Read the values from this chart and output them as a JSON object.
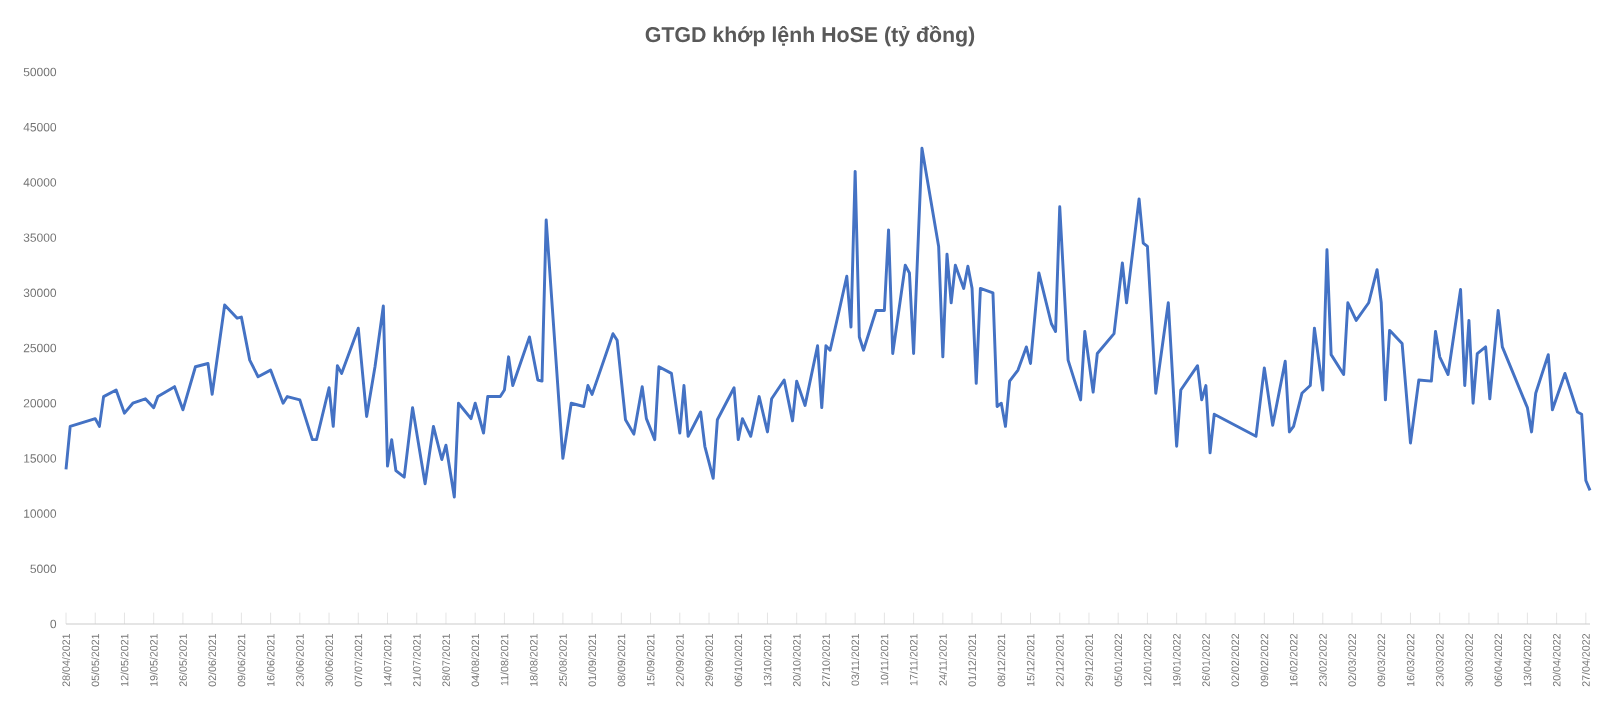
{
  "chart_data": {
    "type": "line",
    "title": "GTGD khớp lệnh HoSE (tỷ đồng)",
    "color": "#4472c4",
    "x": [
      "2021-04-28",
      "2021-04-29",
      "2021-05-05",
      "2021-05-06",
      "2021-05-07",
      "2021-05-10",
      "2021-05-12",
      "2021-05-14",
      "2021-05-17",
      "2021-05-19",
      "2021-05-20",
      "2021-05-24",
      "2021-05-26",
      "2021-05-29",
      "2021-06-01",
      "2021-06-02",
      "2021-06-05",
      "2021-06-08",
      "2021-06-09",
      "2021-06-11",
      "2021-06-13",
      "2021-06-16",
      "2021-06-19",
      "2021-06-20",
      "2021-06-23",
      "2021-06-24",
      "2021-06-26",
      "2021-06-27",
      "2021-06-30",
      "2021-07-01",
      "2021-07-02",
      "2021-07-03",
      "2021-07-07",
      "2021-07-09",
      "2021-07-11",
      "2021-07-13",
      "2021-07-14",
      "2021-07-15",
      "2021-07-16",
      "2021-07-18",
      "2021-07-20",
      "2021-07-23",
      "2021-07-25",
      "2021-07-27",
      "2021-07-28",
      "2021-07-30",
      "2021-07-31",
      "2021-08-03",
      "2021-08-04",
      "2021-08-06",
      "2021-08-07",
      "2021-08-10",
      "2021-08-11",
      "2021-08-12",
      "2021-08-13",
      "2021-08-17",
      "2021-08-19",
      "2021-08-20",
      "2021-08-21",
      "2021-08-25",
      "2021-08-27",
      "2021-08-30",
      "2021-08-31",
      "2021-09-01",
      "2021-09-06",
      "2021-09-07",
      "2021-09-09",
      "2021-09-11",
      "2021-09-13",
      "2021-09-14",
      "2021-09-16",
      "2021-09-17",
      "2021-09-20",
      "2021-09-22",
      "2021-09-23",
      "2021-09-24",
      "2021-09-27",
      "2021-09-28",
      "2021-09-30",
      "2021-10-01",
      "2021-10-05",
      "2021-10-06",
      "2021-10-07",
      "2021-10-09",
      "2021-10-11",
      "2021-10-13",
      "2021-10-14",
      "2021-10-17",
      "2021-10-19",
      "2021-10-20",
      "2021-10-22",
      "2021-10-25",
      "2021-10-26",
      "2021-10-27",
      "2021-10-28",
      "2021-10-30",
      "2021-11-01",
      "2021-11-02",
      "2021-11-03",
      "2021-11-04",
      "2021-11-05",
      "2021-11-08",
      "2021-11-10",
      "2021-11-11",
      "2021-11-12",
      "2021-11-15",
      "2021-11-16",
      "2021-11-17",
      "2021-11-19",
      "2021-11-23",
      "2021-11-24",
      "2021-11-25",
      "2021-11-26",
      "2021-11-27",
      "2021-11-29",
      "2021-11-30",
      "2021-12-01",
      "2021-12-02",
      "2021-12-03",
      "2021-12-06",
      "2021-12-07",
      "2021-12-08",
      "2021-12-09",
      "2021-12-10",
      "2021-12-12",
      "2021-12-14",
      "2021-12-15",
      "2021-12-17",
      "2021-12-20",
      "2021-12-21",
      "2021-12-22",
      "2021-12-24",
      "2021-12-27",
      "2021-12-28",
      "2021-12-30",
      "2021-12-31",
      "2022-01-04",
      "2022-01-06",
      "2022-01-07",
      "2022-01-10",
      "2022-01-11",
      "2022-01-12",
      "2022-01-14",
      "2022-01-17",
      "2022-01-19",
      "2022-01-20",
      "2022-01-24",
      "2022-01-25",
      "2022-01-26",
      "2022-01-27",
      "2022-01-28",
      "2022-02-07",
      "2022-02-09",
      "2022-02-11",
      "2022-02-14",
      "2022-02-15",
      "2022-02-16",
      "2022-02-18",
      "2022-02-20",
      "2022-02-21",
      "2022-02-23",
      "2022-02-24",
      "2022-02-25",
      "2022-02-28",
      "2022-03-01",
      "2022-03-03",
      "2022-03-06",
      "2022-03-08",
      "2022-03-09",
      "2022-03-10",
      "2022-03-11",
      "2022-03-14",
      "2022-03-16",
      "2022-03-18",
      "2022-03-21",
      "2022-03-22",
      "2022-03-23",
      "2022-03-25",
      "2022-03-28",
      "2022-03-29",
      "2022-03-30",
      "2022-03-31",
      "2022-04-01",
      "2022-04-03",
      "2022-04-04",
      "2022-04-06",
      "2022-04-07",
      "2022-04-13",
      "2022-04-14",
      "2022-04-15",
      "2022-04-18",
      "2022-04-19",
      "2022-04-22",
      "2022-04-25",
      "2022-04-26",
      "2022-04-27",
      "2022-04-28"
    ],
    "values": [
      14000,
      17900,
      18600,
      17900,
      20600,
      21200,
      19100,
      20000,
      20400,
      19600,
      20600,
      21500,
      19400,
      23300,
      23600,
      20800,
      28900,
      27700,
      27800,
      23900,
      22400,
      23000,
      20000,
      20600,
      20300,
      19100,
      16700,
      16700,
      21400,
      17900,
      23400,
      22700,
      26800,
      18800,
      23300,
      28800,
      14300,
      16700,
      13900,
      13300,
      19600,
      12700,
      17900,
      14900,
      16200,
      11500,
      20000,
      18600,
      20000,
      17300,
      20600,
      20600,
      21200,
      24200,
      21600,
      26000,
      22100,
      22000,
      36600,
      15000,
      20000,
      19700,
      21600,
      20800,
      26300,
      25700,
      18500,
      17200,
      21500,
      18600,
      16700,
      23300,
      22700,
      17300,
      21600,
      17000,
      19200,
      16100,
      13200,
      18500,
      21400,
      16700,
      18600,
      17000,
      20600,
      17400,
      20400,
      22100,
      18400,
      22000,
      19800,
      25200,
      19600,
      25200,
      24800,
      28100,
      31500,
      26900,
      41000,
      26000,
      24800,
      28400,
      28400,
      35700,
      24500,
      32500,
      31800,
      24500,
      43100,
      34200,
      24200,
      33500,
      29100,
      32500,
      30400,
      32400,
      30400,
      21800,
      30400,
      30000,
      19700,
      20000,
      17900,
      22000,
      23000,
      25100,
      23600,
      31800,
      27200,
      26500,
      37800,
      23900,
      20300,
      26500,
      21000,
      24500,
      26300,
      32700,
      29100,
      38500,
      34500,
      34200,
      20900,
      29100,
      16100,
      21200,
      23400,
      20300,
      21600,
      15500,
      19000,
      17000,
      23200,
      18000,
      23800,
      17400,
      17900,
      20900,
      21600,
      26800,
      21200,
      33900,
      24400,
      22600,
      29100,
      27500,
      29100,
      32100,
      29100,
      20300,
      26600,
      25400,
      16400,
      22100,
      22000,
      26500,
      24200,
      22600,
      30300,
      21600,
      27500,
      20000,
      24500,
      25100,
      20400,
      28400,
      25100,
      19600,
      17400,
      20900,
      24400,
      19400,
      22700,
      19200,
      19000,
      13000,
      12100
    ],
    "xlim": [
      "2021-04-28",
      "2022-04-28"
    ],
    "ylim": [
      0,
      50000
    ],
    "yticks": [
      0,
      5000,
      10000,
      15000,
      20000,
      25000,
      30000,
      35000,
      40000,
      45000,
      50000
    ],
    "xticks": [
      {
        "value": "2021-04-28",
        "label": "28/04/2021"
      },
      {
        "value": "2021-05-05",
        "label": "05/05/2021"
      },
      {
        "value": "2021-05-12",
        "label": "12/05/2021"
      },
      {
        "value": "2021-05-19",
        "label": "19/05/2021"
      },
      {
        "value": "2021-05-26",
        "label": "26/05/2021"
      },
      {
        "value": "2021-06-02",
        "label": "02/06/2021"
      },
      {
        "value": "2021-06-09",
        "label": "09/06/2021"
      },
      {
        "value": "2021-06-16",
        "label": "16/06/2021"
      },
      {
        "value": "2021-06-23",
        "label": "23/06/2021"
      },
      {
        "value": "2021-06-30",
        "label": "30/06/2021"
      },
      {
        "value": "2021-07-07",
        "label": "07/07/2021"
      },
      {
        "value": "2021-07-14",
        "label": "14/07/2021"
      },
      {
        "value": "2021-07-21",
        "label": "21/07/2021"
      },
      {
        "value": "2021-07-28",
        "label": "28/07/2021"
      },
      {
        "value": "2021-08-04",
        "label": "04/08/2021"
      },
      {
        "value": "2021-08-11",
        "label": "11/08/2021"
      },
      {
        "value": "2021-08-18",
        "label": "18/08/2021"
      },
      {
        "value": "2021-08-25",
        "label": "25/08/2021"
      },
      {
        "value": "2021-09-01",
        "label": "01/09/2021"
      },
      {
        "value": "2021-09-08",
        "label": "08/09/2021"
      },
      {
        "value": "2021-09-15",
        "label": "15/09/2021"
      },
      {
        "value": "2021-09-22",
        "label": "22/09/2021"
      },
      {
        "value": "2021-09-29",
        "label": "29/09/2021"
      },
      {
        "value": "2021-10-06",
        "label": "06/10/2021"
      },
      {
        "value": "2021-10-13",
        "label": "13/10/2021"
      },
      {
        "value": "2021-10-20",
        "label": "20/10/2021"
      },
      {
        "value": "2021-10-27",
        "label": "27/10/2021"
      },
      {
        "value": "2021-11-03",
        "label": "03/11/2021"
      },
      {
        "value": "2021-11-10",
        "label": "10/11/2021"
      },
      {
        "value": "2021-11-17",
        "label": "17/11/2021"
      },
      {
        "value": "2021-11-24",
        "label": "24/11/2021"
      },
      {
        "value": "2021-12-01",
        "label": "01/12/2021"
      },
      {
        "value": "2021-12-08",
        "label": "08/12/2021"
      },
      {
        "value": "2021-12-15",
        "label": "15/12/2021"
      },
      {
        "value": "2021-12-22",
        "label": "22/12/2021"
      },
      {
        "value": "2021-12-29",
        "label": "29/12/2021"
      },
      {
        "value": "2022-01-05",
        "label": "05/01/2022"
      },
      {
        "value": "2022-01-12",
        "label": "12/01/2022"
      },
      {
        "value": "2022-01-19",
        "label": "19/01/2022"
      },
      {
        "value": "2022-01-26",
        "label": "26/01/2022"
      },
      {
        "value": "2022-02-02",
        "label": "02/02/2022"
      },
      {
        "value": "2022-02-09",
        "label": "09/02/2022"
      },
      {
        "value": "2022-02-16",
        "label": "16/02/2022"
      },
      {
        "value": "2022-02-23",
        "label": "23/02/2022"
      },
      {
        "value": "2022-03-02",
        "label": "02/03/2022"
      },
      {
        "value": "2022-03-09",
        "label": "09/03/2022"
      },
      {
        "value": "2022-03-16",
        "label": "16/03/2022"
      },
      {
        "value": "2022-03-23",
        "label": "23/03/2022"
      },
      {
        "value": "2022-03-30",
        "label": "30/03/2022"
      },
      {
        "value": "2022-04-06",
        "label": "06/04/2022"
      },
      {
        "value": "2022-04-13",
        "label": "13/04/2022"
      },
      {
        "value": "2022-04-20",
        "label": "20/04/2022"
      },
      {
        "value": "2022-04-27",
        "label": "27/04/2022"
      }
    ]
  }
}
